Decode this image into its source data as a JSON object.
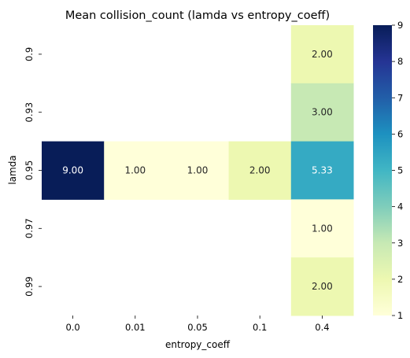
{
  "chart_data": {
    "type": "heatmap",
    "title": "Mean collision_count (lamda vs entropy_coeff)",
    "xlabel": "entropy_coeff",
    "ylabel": "lamda",
    "x_categories": [
      "0.0",
      "0.01",
      "0.05",
      "0.1",
      "0.4"
    ],
    "y_categories": [
      "0.9",
      "0.93",
      "0.95",
      "0.97",
      "0.99"
    ],
    "values": [
      [
        null,
        null,
        null,
        null,
        2.0
      ],
      [
        null,
        null,
        null,
        null,
        3.0
      ],
      [
        9.0,
        1.0,
        1.0,
        2.0,
        5.33
      ],
      [
        null,
        null,
        null,
        null,
        1.0
      ],
      [
        null,
        null,
        null,
        null,
        2.0
      ]
    ],
    "cell_labels": [
      [
        null,
        null,
        null,
        null,
        "2.00"
      ],
      [
        null,
        null,
        null,
        null,
        "3.00"
      ],
      [
        "9.00",
        "1.00",
        "1.00",
        "2.00",
        "5.33"
      ],
      [
        null,
        null,
        null,
        null,
        "1.00"
      ],
      [
        null,
        null,
        null,
        null,
        "2.00"
      ]
    ],
    "colormap": "YlGnBu",
    "colorbar": {
      "min": 1,
      "max": 9,
      "ticks": [
        "1",
        "2",
        "3",
        "4",
        "5",
        "6",
        "7",
        "8",
        "9"
      ]
    },
    "grid": false
  }
}
